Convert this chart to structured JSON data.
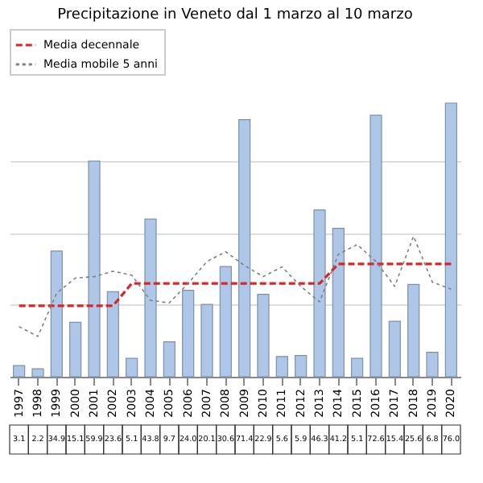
{
  "chart_data": {
    "type": "bar",
    "title": "Precipitazione in Veneto dal 1 marzo al 10 marzo",
    "categories": [
      "1997",
      "1998",
      "1999",
      "2000",
      "2001",
      "2002",
      "2003",
      "2004",
      "2005",
      "2006",
      "2007",
      "2008",
      "2009",
      "2010",
      "2011",
      "2012",
      "2013",
      "2014",
      "2015",
      "2016",
      "2017",
      "2018",
      "2019",
      "2020"
    ],
    "series": [
      {
        "color": "#aec7e8",
        "values": [
          3.1,
          2.2,
          34.9,
          15.1,
          59.9,
          23.6,
          5.1,
          43.8,
          9.7,
          24.0,
          20.1,
          30.6,
          71.4,
          22.9,
          5.6,
          5.9,
          46.3,
          41.2,
          5.1,
          72.6,
          15.4,
          25.6,
          6.8,
          76.0
        ],
        "value_labels": [
          "3.1",
          "2.2",
          "34.9",
          "15.1",
          "59.9",
          "23.6",
          "5.1",
          "43.8",
          "9.7",
          "24.0",
          "20.1",
          "30.6",
          "71.4",
          "22.9",
          "5.6",
          "5.9",
          "46.3",
          "41.2",
          "5.1",
          "72.6",
          "15.4",
          "25.6",
          "6.8",
          "76.0"
        ]
      },
      {
        "type": "line",
        "name": "Media decennale",
        "color": "#d62728",
        "line_style": "dashed",
        "values": [
          19.7,
          19.7,
          19.7,
          19.7,
          19.7,
          19.7,
          25.9,
          25.9,
          25.9,
          25.9,
          25.9,
          25.9,
          25.9,
          25.9,
          25.9,
          25.9,
          25.9,
          31.3,
          31.3,
          31.3,
          31.3,
          31.3,
          31.3,
          31.3
        ]
      },
      {
        "type": "line",
        "name": "Media mobile 5 anni",
        "color": "#808080",
        "line_style": "dotted",
        "values": [
          13.9,
          11.2,
          23.2,
          27.4,
          27.8,
          29.3,
          28.2,
          21.2,
          20.5,
          25.9,
          32.0,
          34.7,
          30.9,
          27.8,
          30.5,
          25.1,
          20.8,
          34.0,
          36.7,
          32.0,
          25.1,
          39.0,
          26.3,
          24.3
        ]
      }
    ],
    "grid": "y",
    "legend": "top left",
    "tick_labels": "x"
  }
}
